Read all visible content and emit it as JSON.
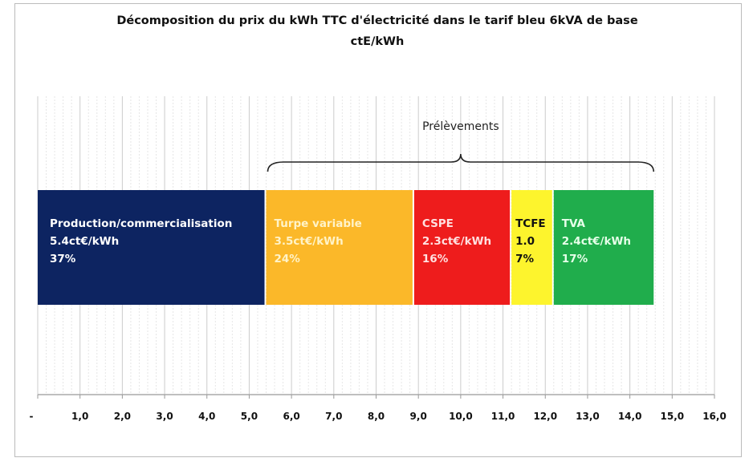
{
  "chart_data": {
    "type": "bar",
    "orientation": "horizontal-stacked",
    "title": "Décomposition du prix du kWh TTC d'électricité dans le tarif bleu 6kVA de base",
    "subtitle": "ctE/kWh",
    "xlim": [
      0,
      16
    ],
    "grid": true,
    "x_tick_labels": [
      "-",
      "1,0",
      "2,0",
      "3,0",
      "4,0",
      "5,0",
      "6,0",
      "7,0",
      "8,0",
      "9,0",
      "10,0",
      "11,0",
      "12,0",
      "13,0",
      "14,0",
      "15,0",
      "16,0"
    ],
    "series": [
      {
        "name": "Production/commercialisation",
        "value": 5.4,
        "value_label": "5.4ct€/kWh",
        "percent_label": "37%",
        "color": "#0d2461",
        "text_color": "#ffffff"
      },
      {
        "name": "Turpe variable",
        "value": 3.5,
        "value_label": "3.5ct€/kWh",
        "percent_label": "24%",
        "color": "#fbb829",
        "text_color": "#fff3c8"
      },
      {
        "name": "CSPE",
        "value": 2.3,
        "value_label": "2.3ct€/kWh",
        "percent_label": "16%",
        "color": "#ee1c1c",
        "text_color": "#ffe0e0"
      },
      {
        "name": "TCFE",
        "value": 1.0,
        "value_label": "1.0",
        "percent_label": "7%",
        "color": "#fdf42d",
        "text_color": "#111111"
      },
      {
        "name": "TVA",
        "value": 2.4,
        "value_label": "2.4ct€/kWh",
        "percent_label": "17%",
        "color": "#20ad4c",
        "text_color": "#e6ffe9"
      }
    ],
    "annotations": [
      {
        "text": "Prélèvements",
        "type": "brace",
        "from": 5.4,
        "to": 14.6
      }
    ]
  }
}
